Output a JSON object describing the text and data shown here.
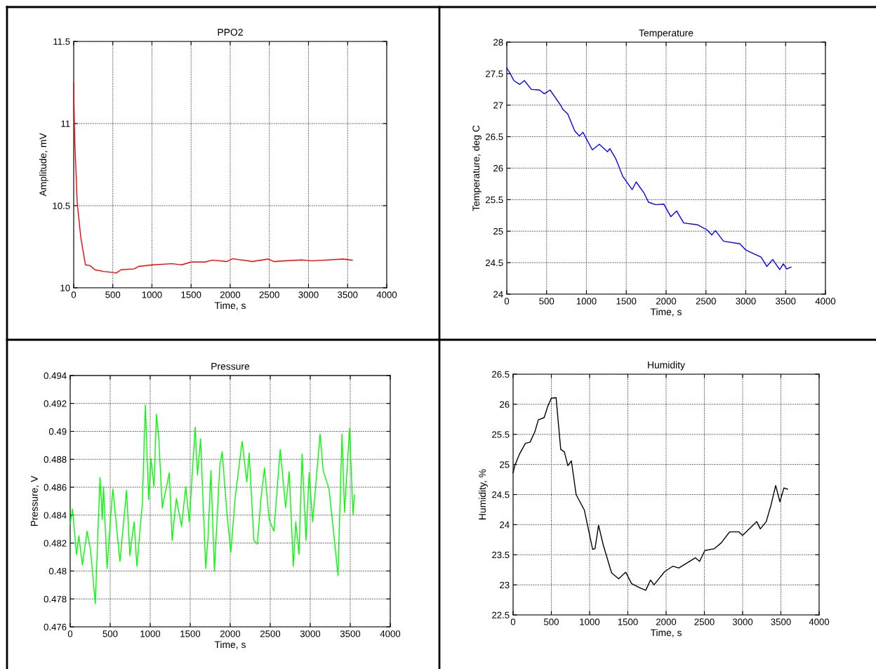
{
  "chart_data": [
    {
      "type": "line",
      "title": "PPO2",
      "xlabel": "Time, s",
      "ylabel": "Amplitude, mV",
      "xlim": [
        0,
        4000
      ],
      "xticks": [
        0,
        500,
        1000,
        1500,
        2000,
        2500,
        3000,
        3500,
        4000
      ],
      "ylim": [
        10,
        11.5
      ],
      "yticks": [
        10,
        10.5,
        11,
        11.5
      ],
      "grid": true,
      "series": [
        {
          "color": "#ff0000",
          "x": [
            0,
            5,
            15,
            45,
            90,
            150,
            210,
            270,
            380,
            545,
            605,
            770,
            830,
            1015,
            1255,
            1380,
            1500,
            1680,
            1770,
            1955,
            2030,
            2285,
            2485,
            2560,
            2910,
            3045,
            3440,
            3560
          ],
          "values": [
            11.25,
            11.1,
            10.88,
            10.52,
            10.31,
            10.14,
            10.135,
            10.11,
            10.1,
            10.09,
            10.11,
            10.115,
            10.13,
            10.14,
            10.147,
            10.14,
            10.157,
            10.157,
            10.168,
            10.16,
            10.177,
            10.16,
            10.175,
            10.16,
            10.17,
            10.164,
            10.175,
            10.168
          ]
        }
      ]
    },
    {
      "type": "line",
      "title": "Temperature",
      "xlabel": "Time, s",
      "ylabel": "Temperature, deg C",
      "xlim": [
        0,
        4000
      ],
      "xticks": [
        0,
        500,
        1000,
        1500,
        2000,
        2500,
        3000,
        3500,
        4000
      ],
      "ylim": [
        24,
        28
      ],
      "yticks": [
        24,
        24.5,
        25,
        25.5,
        26,
        26.5,
        27,
        27.5,
        28
      ],
      "grid": true,
      "series": [
        {
          "color": "#0000ff",
          "x": [
            0,
            44,
            88,
            162,
            221,
            309,
            412,
            471,
            544,
            676,
            706,
            765,
            853,
            912,
            956,
            1074,
            1162,
            1265,
            1294,
            1368,
            1456,
            1574,
            1624,
            1721,
            1779,
            1868,
            1971,
            2059,
            2132,
            2221,
            2397,
            2515,
            2574,
            2618,
            2721,
            2926,
            3000,
            3103,
            3191,
            3265,
            3338,
            3426,
            3471,
            3515,
            3568
          ],
          "values": [
            27.59,
            27.5,
            27.39,
            27.33,
            27.39,
            27.25,
            27.24,
            27.18,
            27.24,
            27.0,
            26.93,
            26.86,
            26.59,
            26.51,
            26.57,
            26.29,
            26.38,
            26.26,
            26.31,
            26.15,
            25.87,
            25.66,
            25.78,
            25.61,
            25.46,
            25.42,
            25.43,
            25.23,
            25.32,
            25.13,
            25.1,
            25.02,
            24.94,
            25.01,
            24.84,
            24.8,
            24.7,
            24.64,
            24.59,
            24.44,
            24.55,
            24.39,
            24.48,
            24.4,
            24.43
          ]
        }
      ]
    },
    {
      "type": "line",
      "title": "Pressure",
      "xlabel": "Time, s",
      "ylabel": "Pressure, V",
      "xlim": [
        0,
        4000
      ],
      "xticks": [
        0,
        500,
        1000,
        1500,
        2000,
        2500,
        3000,
        3500,
        4000
      ],
      "ylim": [
        0.476,
        0.494
      ],
      "yticks": [
        0.476,
        0.478,
        0.48,
        0.482,
        0.484,
        0.486,
        0.488,
        0.49,
        0.492,
        0.494
      ],
      "grid": true,
      "series": [
        {
          "color": "#00ff00",
          "x": [
            0,
            29,
            79,
            109,
            153,
            211,
            255,
            314,
            373,
            402,
            417,
            461,
            505,
            534,
            622,
            705,
            746,
            799,
            834,
            902,
            940,
            981,
            1010,
            1048,
            1078,
            1107,
            1151,
            1239,
            1274,
            1327,
            1392,
            1444,
            1489,
            1562,
            1591,
            1630,
            1694,
            1724,
            1759,
            1803,
            1870,
            1900,
            1958,
            2008,
            2061,
            2149,
            2208,
            2237,
            2296,
            2340,
            2384,
            2428,
            2487,
            2546,
            2625,
            2693,
            2737,
            2789,
            2819,
            2860,
            2898,
            2948,
            2986,
            3030,
            3123,
            3162,
            3235,
            3300,
            3347,
            3397,
            3429,
            3491,
            3535,
            3553
          ],
          "values": [
            0.48335,
            0.48444,
            0.48118,
            0.48252,
            0.48043,
            0.48285,
            0.48151,
            0.47766,
            0.4867,
            0.48369,
            0.48603,
            0.48017,
            0.48386,
            0.48587,
            0.48068,
            0.48578,
            0.4811,
            0.48352,
            0.48034,
            0.48486,
            0.49189,
            0.48511,
            0.48804,
            0.48603,
            0.49122,
            0.48955,
            0.48453,
            0.48704,
            0.48218,
            0.4852,
            0.48319,
            0.48603,
            0.48352,
            0.4903,
            0.48687,
            0.48946,
            0.48017,
            0.48252,
            0.4872,
            0.48001,
            0.48754,
            0.48854,
            0.48419,
            0.48135,
            0.4852,
            0.48929,
            0.48637,
            0.48846,
            0.48218,
            0.48193,
            0.4852,
            0.48737,
            0.48369,
            0.48285,
            0.48871,
            0.48453,
            0.48712,
            0.48034,
            0.48352,
            0.48118,
            0.48838,
            0.48218,
            0.48704,
            0.48352,
            0.4898,
            0.4872,
            0.48587,
            0.48235,
            0.47967,
            0.4898,
            0.48419,
            0.49022,
            0.48403,
            0.48545
          ]
        }
      ]
    },
    {
      "type": "line",
      "title": "Humidity",
      "xlabel": "Time, s",
      "ylabel": "Humidity, %",
      "xlim": [
        0,
        4000
      ],
      "xticks": [
        0,
        500,
        1000,
        1500,
        2000,
        2500,
        3000,
        3500,
        4000
      ],
      "ylim": [
        22.5,
        26.5
      ],
      "yticks": [
        22.5,
        23,
        23.5,
        24,
        24.5,
        25,
        25.5,
        26,
        26.5
      ],
      "grid": true,
      "series": [
        {
          "color": "#000000",
          "x": [
            0,
            22,
            83,
            160,
            222,
            284,
            330,
            407,
            454,
            500,
            562,
            623,
            670,
            716,
            762,
            824,
            932,
            1040,
            1071,
            1117,
            1179,
            1287,
            1380,
            1472,
            1549,
            1657,
            1734,
            1796,
            1842,
            1981,
            2089,
            2166,
            2382,
            2438,
            2506,
            2629,
            2722,
            2830,
            2953,
            2999,
            3185,
            3231,
            3308,
            3370,
            3432,
            3487,
            3540,
            3586
          ],
          "values": [
            24.86,
            24.98,
            25.17,
            25.35,
            25.37,
            25.54,
            25.74,
            25.78,
            25.97,
            26.1,
            26.11,
            25.25,
            25.21,
            24.98,
            25.06,
            24.5,
            24.24,
            23.59,
            23.6,
            23.99,
            23.66,
            23.2,
            23.1,
            23.21,
            23.02,
            22.95,
            22.91,
            23.08,
            23.0,
            23.22,
            23.31,
            23.28,
            23.45,
            23.39,
            23.57,
            23.6,
            23.7,
            23.88,
            23.88,
            23.82,
            24.05,
            23.93,
            24.05,
            24.32,
            24.65,
            24.38,
            24.61,
            24.59
          ]
        }
      ]
    }
  ]
}
